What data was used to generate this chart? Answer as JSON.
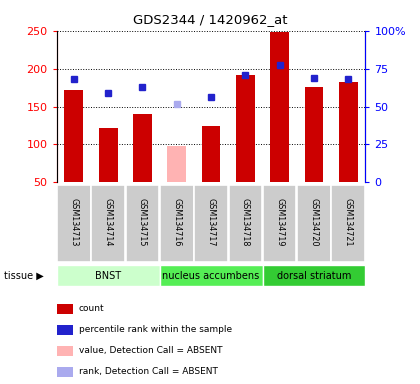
{
  "title": "GDS2344 / 1420962_at",
  "samples": [
    "GSM134713",
    "GSM134714",
    "GSM134715",
    "GSM134716",
    "GSM134717",
    "GSM134718",
    "GSM134719",
    "GSM134720",
    "GSM134721"
  ],
  "bar_values": [
    172,
    122,
    140,
    98,
    125,
    192,
    248,
    176,
    183
  ],
  "bar_colors": [
    "#cc0000",
    "#cc0000",
    "#cc0000",
    "#ffb3b3",
    "#cc0000",
    "#cc0000",
    "#cc0000",
    "#cc0000",
    "#cc0000"
  ],
  "dot_values": [
    186,
    168,
    176,
    154,
    162,
    192,
    205,
    187,
    186
  ],
  "dot_colors": [
    "#2222cc",
    "#2222cc",
    "#2222cc",
    "#aaaaee",
    "#2222cc",
    "#2222cc",
    "#2222cc",
    "#2222cc",
    "#2222cc"
  ],
  "tissues": [
    {
      "label": "BNST",
      "start": 0,
      "end": 3,
      "color": "#ccffcc"
    },
    {
      "label": "nucleus accumbens",
      "start": 3,
      "end": 6,
      "color": "#55ee55"
    },
    {
      "label": "dorsal striatum",
      "start": 6,
      "end": 9,
      "color": "#33cc33"
    }
  ],
  "ylim_left": [
    50,
    250
  ],
  "left_ticks": [
    50,
    100,
    150,
    200,
    250
  ],
  "right_ticks": [
    0,
    25,
    50,
    75,
    100
  ],
  "right_tick_labels": [
    "0",
    "25",
    "50",
    "75",
    "100%"
  ],
  "bar_width": 0.55,
  "sample_box_color": "#cccccc",
  "plot_bg": "#ffffff",
  "legend_items": [
    {
      "color": "#cc0000",
      "label": "count"
    },
    {
      "color": "#2222cc",
      "label": "percentile rank within the sample"
    },
    {
      "color": "#ffb3b3",
      "label": "value, Detection Call = ABSENT"
    },
    {
      "color": "#aaaaee",
      "label": "rank, Detection Call = ABSENT"
    }
  ]
}
